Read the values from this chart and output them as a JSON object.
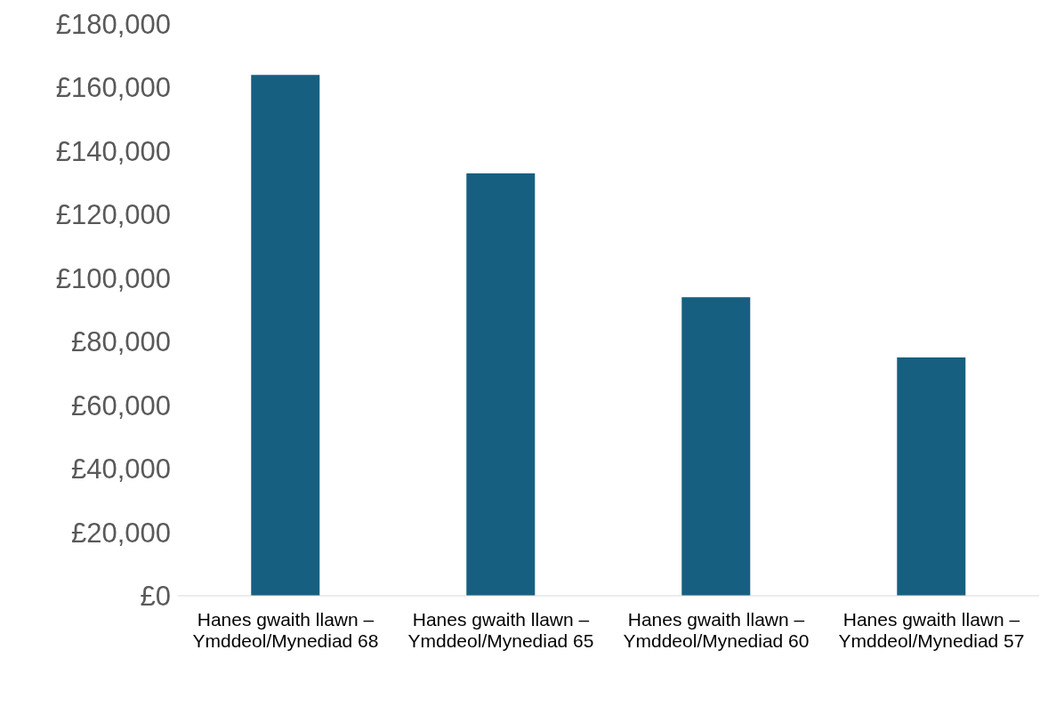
{
  "chart_data": {
    "type": "bar",
    "categories": [
      "Hanes gwaith llawn – Ymddeol/Mynediad 68",
      "Hanes gwaith llawn – Ymddeol/Mynediad 65",
      "Hanes gwaith llawn – Ymddeol/Mynediad 60",
      "Hanes gwaith llawn – Ymddeol/Mynediad 57"
    ],
    "values": [
      164000,
      133000,
      94000,
      75000
    ],
    "color": "#175f80",
    "ylim": [
      0,
      180000
    ],
    "yticks": [
      {
        "value": 0,
        "label": "£0"
      },
      {
        "value": 20000,
        "label": "£20,000"
      },
      {
        "value": 40000,
        "label": "£40,000"
      },
      {
        "value": 60000,
        "label": "£60,000"
      },
      {
        "value": 80000,
        "label": "£80,000"
      },
      {
        "value": 100000,
        "label": "£100,000"
      },
      {
        "value": 120000,
        "label": "£120,000"
      },
      {
        "value": 140000,
        "label": "£140,000"
      },
      {
        "value": 160000,
        "label": "£160,000"
      },
      {
        "value": 180000,
        "label": "£180,000"
      }
    ],
    "grid": false
  }
}
